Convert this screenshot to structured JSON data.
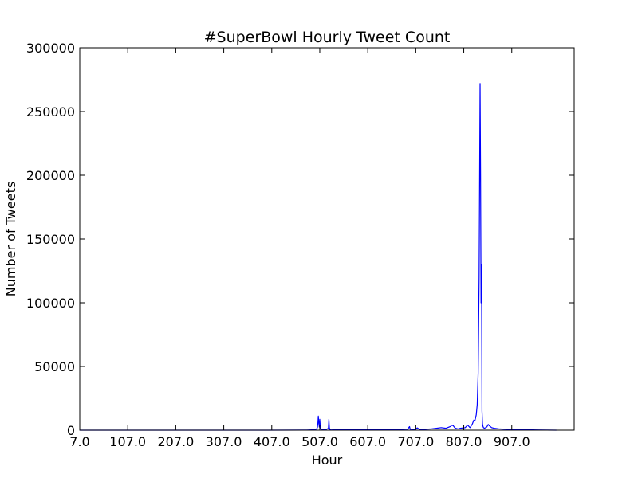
{
  "chart_data": {
    "type": "line",
    "title": "#SuperBowl Hourly Tweet Count",
    "xlabel": "Hour",
    "ylabel": "Number of Tweets",
    "xlim": [
      7,
      1037
    ],
    "ylim": [
      0,
      300000
    ],
    "xticks": [
      7,
      107,
      207,
      307,
      407,
      507,
      607,
      707,
      807,
      907
    ],
    "xtick_labels": [
      "7.0",
      "107.0",
      "207.0",
      "307.0",
      "407.0",
      "507.0",
      "607.0",
      "707.0",
      "807.0",
      "907.0"
    ],
    "yticks": [
      0,
      50000,
      100000,
      150000,
      200000,
      250000,
      300000
    ],
    "ytick_labels": [
      "0",
      "50000",
      "100000",
      "150000",
      "200000",
      "250000",
      "300000"
    ],
    "grid": false,
    "line_color": "#0000ff",
    "series": [
      {
        "x": [
          7,
          100,
          200,
          300,
          400,
          480,
          495,
          500,
          502,
          503,
          504,
          505,
          506,
          507,
          508,
          509,
          510,
          512,
          515,
          520,
          525,
          526,
          527,
          528,
          530,
          540,
          560,
          580,
          600,
          620,
          640,
          660,
          680,
          690,
          694,
          695,
          696,
          698,
          705,
          710,
          715,
          720,
          730,
          740,
          750,
          760,
          770,
          780,
          782,
          785,
          788,
          790,
          795,
          800,
          810,
          815,
          820,
          822,
          825,
          828,
          830,
          833,
          835,
          837,
          839,
          840,
          841,
          842,
          843,
          844,
          845,
          846,
          847,
          848,
          850,
          855,
          858,
          860,
          862,
          865,
          870,
          880,
          890,
          900,
          920,
          940,
          960,
          980,
          1000
        ],
        "y": [
          0,
          0,
          0,
          0,
          0,
          100,
          300,
          800,
          2000,
          5000,
          11000,
          6000,
          2500,
          8500,
          3500,
          1200,
          600,
          300,
          800,
          500,
          1500,
          8500,
          2000,
          500,
          200,
          300,
          400,
          300,
          300,
          400,
          300,
          500,
          700,
          800,
          2800,
          1200,
          600,
          800,
          500,
          1800,
          700,
          500,
          800,
          1000,
          1500,
          2000,
          1500,
          3000,
          4000,
          3500,
          2000,
          1500,
          1000,
          1500,
          2000,
          4000,
          2000,
          3000,
          5000,
          8000,
          7000,
          12000,
          20000,
          45000,
          120000,
          195000,
          272000,
          200000,
          100000,
          130000,
          15000,
          5000,
          3000,
          2000,
          1500,
          2500,
          4500,
          3500,
          3000,
          2000,
          1500,
          1000,
          800,
          600,
          400,
          300,
          200,
          100,
          0
        ]
      }
    ]
  }
}
